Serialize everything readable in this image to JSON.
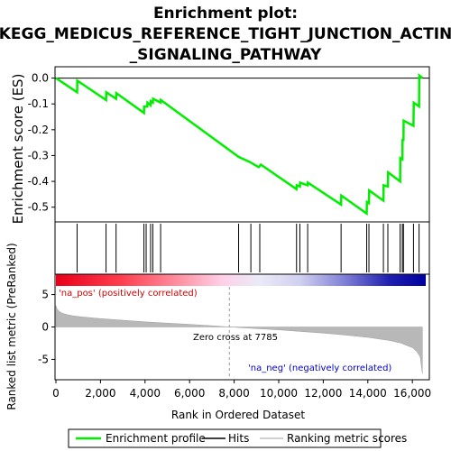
{
  "title_line1": "Enrichment plot:",
  "title_line2": "KEGG_MEDICUS_REFERENCE_TIGHT_JUNCTION_ACTIN",
  "title_line3": "_SIGNALING_PATHWAY",
  "chart_data": [
    {
      "type": "line",
      "panel": "enrichment",
      "ylabel": "Enrichment score (ES)",
      "ylim": [
        -0.55,
        0.03
      ],
      "yticks": [
        "0.0",
        "-0.1",
        "-0.2",
        "-0.3",
        "-0.4",
        "-0.5"
      ],
      "ytick_values": [
        0.0,
        -0.1,
        -0.2,
        -0.3,
        -0.4,
        -0.5
      ],
      "xlim": [
        0,
        16600
      ],
      "series": [
        {
          "name": "Enrichment profile",
          "color": "#00ee00",
          "x": [
            0,
            950,
            960,
            2250,
            2260,
            2700,
            2710,
            3950,
            3960,
            4100,
            4110,
            4250,
            4260,
            4350,
            4360,
            4700,
            4710,
            8200,
            8700,
            9100,
            9200,
            10800,
            10810,
            10950,
            10960,
            11300,
            11310,
            12800,
            12810,
            13950,
            13960,
            14050,
            14060,
            14700,
            14710,
            14900,
            14910,
            15450,
            15460,
            15550,
            15560,
            15600,
            15610,
            16050,
            16060,
            16300,
            16310,
            16450
          ],
          "y": [
            0.0,
            -0.055,
            -0.01,
            -0.085,
            -0.055,
            -0.08,
            -0.058,
            -0.135,
            -0.11,
            -0.11,
            -0.095,
            -0.105,
            -0.09,
            -0.095,
            -0.08,
            -0.095,
            -0.085,
            -0.305,
            -0.325,
            -0.345,
            -0.335,
            -0.43,
            -0.415,
            -0.42,
            -0.405,
            -0.415,
            -0.405,
            -0.49,
            -0.455,
            -0.525,
            -0.48,
            -0.485,
            -0.435,
            -0.475,
            -0.415,
            -0.42,
            -0.365,
            -0.4,
            -0.31,
            -0.315,
            -0.24,
            -0.24,
            -0.165,
            -0.185,
            -0.095,
            -0.11,
            0.01,
            0.0
          ]
        }
      ]
    },
    {
      "type": "hits",
      "panel": "hits",
      "hit_positions": [
        950,
        2250,
        2700,
        3950,
        4050,
        4250,
        4350,
        4700,
        8200,
        8750,
        9150,
        10800,
        10950,
        11300,
        12800,
        13950,
        14050,
        14700,
        14900,
        15450,
        15550,
        15600,
        16050,
        16300
      ]
    },
    {
      "type": "area",
      "panel": "ranked_list",
      "ylabel": "Ranked list metric (PreRanked)",
      "xlabel": "Rank in Ordered Dataset",
      "ylim": [
        -8,
        8
      ],
      "yticks": [
        "5",
        "0",
        "-5"
      ],
      "ytick_values": [
        5,
        0,
        -5
      ],
      "xlim": [
        0,
        16600
      ],
      "xticks": [
        "0",
        "2,000",
        "4,000",
        "6,000",
        "8,000",
        "10,000",
        "12,000",
        "14,000",
        "16,000"
      ],
      "xtick_values": [
        0,
        2000,
        4000,
        6000,
        8000,
        10000,
        12000,
        14000,
        16000
      ],
      "x": [
        0,
        50,
        150,
        300,
        500,
        800,
        1200,
        2000,
        3000,
        4000,
        5000,
        6000,
        7000,
        7785,
        9000,
        10000,
        11000,
        12000,
        13000,
        14000,
        15000,
        15500,
        16000,
        16200,
        16350,
        16450
      ],
      "y": [
        3.3,
        2.8,
        2.4,
        2.1,
        1.9,
        1.7,
        1.55,
        1.3,
        1.05,
        0.8,
        0.6,
        0.4,
        0.2,
        0.0,
        -0.25,
        -0.45,
        -0.7,
        -0.95,
        -1.25,
        -1.6,
        -2.1,
        -2.5,
        -3.2,
        -3.8,
        -4.6,
        -7.2
      ],
      "zero_cross_label": "Zero cross at 7785",
      "zero_cross": 7785,
      "pos_label": "'na_pos' (positively correlated)",
      "neg_label": "'na_neg' (negatively correlated)",
      "pos_color": "#cc0000",
      "neg_color": "#0000cc"
    }
  ],
  "legend": [
    {
      "label": "Enrichment profile",
      "color": "#00ee00"
    },
    {
      "label": "Hits",
      "color": "#000000"
    },
    {
      "label": "Ranking metric scores",
      "color": "#c0c0c0"
    }
  ]
}
